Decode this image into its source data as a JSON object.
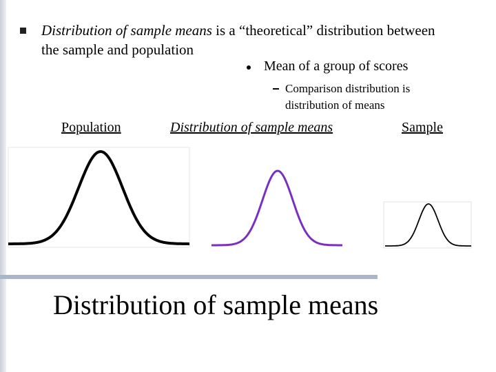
{
  "bullet": {
    "emphasis": "Distribution of sample means",
    "text": " is a “theoretical” distribution between the sample and population"
  },
  "sub_bullet": "Mean of a group of scores",
  "sub_sub_bullet": "Comparison distribution is distribution of means",
  "labels": [
    "Population",
    "Distribution of sample means",
    "Sample"
  ],
  "title": "Distribution of sample means"
}
